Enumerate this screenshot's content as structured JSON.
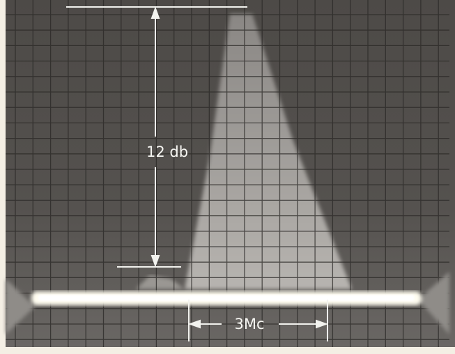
{
  "annotations": {
    "vertical": "12 db",
    "horizontal": "3Mc"
  }
}
